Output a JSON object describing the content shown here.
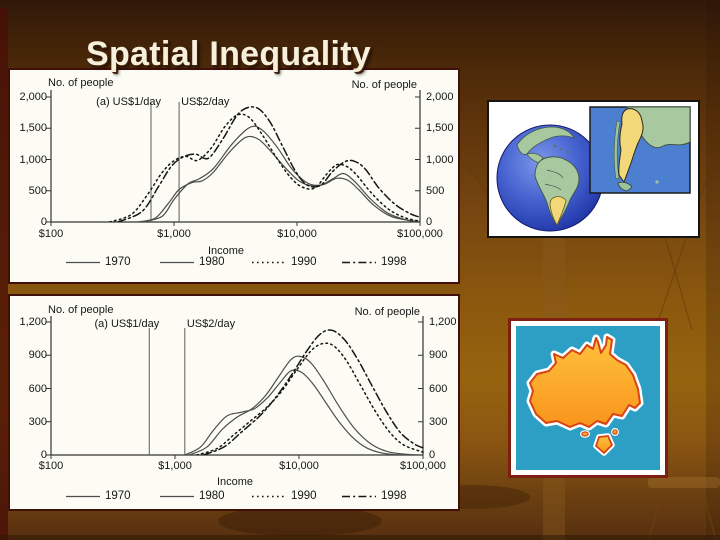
{
  "slide": {
    "title": "Spatial Inequality"
  },
  "chart_data": [
    {
      "type": "line",
      "x_scale": "log",
      "xlabel": "Income",
      "ylabel_left": "No. of people",
      "ylabel_right": "No. of people",
      "xlim": [
        100,
        100000
      ],
      "ylim": [
        0,
        2000
      ],
      "x_tick_labels": [
        "$100",
        "$1,000",
        "$10,000",
        "$100,000"
      ],
      "y_tick_labels": [
        "0",
        "500",
        "1,000",
        "1,500",
        "2,000"
      ],
      "grid": false,
      "legend_position": "bottom",
      "reference_lines": [
        {
          "label": "(a) US$1/day",
          "x": 650
        },
        {
          "label": "US$2/day",
          "x": 1100
        }
      ],
      "series": [
        {
          "name": "1970",
          "style": "solid",
          "points": [
            [
              500,
              0
            ],
            [
              700,
              60
            ],
            [
              900,
              300
            ],
            [
              1100,
              520
            ],
            [
              1400,
              630
            ],
            [
              1700,
              660
            ],
            [
              2100,
              800
            ],
            [
              2800,
              1110
            ],
            [
              3800,
              1350
            ],
            [
              4800,
              1330
            ],
            [
              6000,
              1150
            ],
            [
              8000,
              870
            ],
            [
              10500,
              650
            ],
            [
              13500,
              575
            ],
            [
              17000,
              610
            ],
            [
              21000,
              700
            ],
            [
              26000,
              665
            ],
            [
              32000,
              510
            ],
            [
              42000,
              270
            ],
            [
              60000,
              80
            ],
            [
              100000,
              5
            ]
          ]
        },
        {
          "name": "1980",
          "style": "solid",
          "points": [
            [
              550,
              0
            ],
            [
              800,
              90
            ],
            [
              1000,
              360
            ],
            [
              1300,
              610
            ],
            [
              1600,
              690
            ],
            [
              2100,
              860
            ],
            [
              3000,
              1260
            ],
            [
              4200,
              1520
            ],
            [
              5300,
              1460
            ],
            [
              7000,
              1180
            ],
            [
              9000,
              860
            ],
            [
              12000,
              630
            ],
            [
              15500,
              590
            ],
            [
              19500,
              690
            ],
            [
              24000,
              775
            ],
            [
              30000,
              630
            ],
            [
              40000,
              360
            ],
            [
              55000,
              140
            ],
            [
              80000,
              25
            ],
            [
              100000,
              5
            ]
          ]
        },
        {
          "name": "1990",
          "style": "dotted",
          "points": [
            [
              300,
              0
            ],
            [
              450,
              120
            ],
            [
              600,
              420
            ],
            [
              800,
              790
            ],
            [
              1000,
              980
            ],
            [
              1250,
              1050
            ],
            [
              1550,
              985
            ],
            [
              2000,
              1180
            ],
            [
              2600,
              1530
            ],
            [
              3300,
              1715
            ],
            [
              4100,
              1670
            ],
            [
              5200,
              1400
            ],
            [
              6800,
              1030
            ],
            [
              8800,
              720
            ],
            [
              11000,
              560
            ],
            [
              14000,
              545
            ],
            [
              17500,
              770
            ],
            [
              21000,
              915
            ],
            [
              25000,
              895
            ],
            [
              30000,
              770
            ],
            [
              40000,
              470
            ],
            [
              55000,
              210
            ],
            [
              75000,
              70
            ],
            [
              100000,
              15
            ]
          ]
        },
        {
          "name": "1998",
          "style": "dashdot",
          "points": [
            [
              350,
              0
            ],
            [
              550,
              170
            ],
            [
              750,
              570
            ],
            [
              950,
              890
            ],
            [
              1200,
              1045
            ],
            [
              1500,
              1085
            ],
            [
              1900,
              1020
            ],
            [
              2500,
              1330
            ],
            [
              3400,
              1750
            ],
            [
              4600,
              1835
            ],
            [
              5900,
              1630
            ],
            [
              7600,
              1220
            ],
            [
              9600,
              830
            ],
            [
              12000,
              595
            ],
            [
              15500,
              585
            ],
            [
              19500,
              810
            ],
            [
              24500,
              965
            ],
            [
              29500,
              970
            ],
            [
              36000,
              845
            ],
            [
              46000,
              550
            ],
            [
              62000,
              290
            ],
            [
              82000,
              140
            ],
            [
              100000,
              75
            ]
          ]
        }
      ]
    },
    {
      "type": "line",
      "x_scale": "log",
      "xlabel": "Income",
      "ylabel_left": "No. of people",
      "ylabel_right": "No. of people",
      "xlim": [
        100,
        100000
      ],
      "ylim": [
        0,
        1200
      ],
      "x_tick_labels": [
        "$100",
        "$1,000",
        "$10,000",
        "$100,000"
      ],
      "y_tick_labels": [
        "0",
        "300",
        "600",
        "900",
        "1,200"
      ],
      "grid": false,
      "legend_position": "bottom",
      "reference_lines": [
        {
          "label": "(a) US$1/day",
          "x": 620
        },
        {
          "label": "US$2/day",
          "x": 1200
        }
      ],
      "series": [
        {
          "name": "1970",
          "style": "solid",
          "points": [
            [
              1200,
              0
            ],
            [
              1600,
              70
            ],
            [
              2000,
              210
            ],
            [
              2600,
              350
            ],
            [
              3400,
              385
            ],
            [
              4400,
              420
            ],
            [
              5600,
              520
            ],
            [
              7000,
              650
            ],
            [
              8600,
              760
            ],
            [
              10500,
              745
            ],
            [
              13000,
              640
            ],
            [
              16500,
              470
            ],
            [
              21000,
              300
            ],
            [
              27000,
              160
            ],
            [
              35000,
              65
            ],
            [
              48000,
              15
            ],
            [
              70000,
              0
            ],
            [
              100000,
              0
            ]
          ]
        },
        {
          "name": "1980",
          "style": "solid",
          "points": [
            [
              1300,
              0
            ],
            [
              1800,
              70
            ],
            [
              2400,
              230
            ],
            [
              3200,
              345
            ],
            [
              4200,
              420
            ],
            [
              5400,
              540
            ],
            [
              6800,
              700
            ],
            [
              8600,
              860
            ],
            [
              10200,
              890
            ],
            [
              12500,
              830
            ],
            [
              16000,
              660
            ],
            [
              21000,
              440
            ],
            [
              28000,
              240
            ],
            [
              38000,
              100
            ],
            [
              52000,
              30
            ],
            [
              75000,
              5
            ],
            [
              100000,
              0
            ]
          ]
        },
        {
          "name": "1990",
          "style": "dotted",
          "points": [
            [
              1500,
              0
            ],
            [
              2200,
              60
            ],
            [
              3000,
              185
            ],
            [
              4100,
              310
            ],
            [
              5500,
              430
            ],
            [
              7300,
              580
            ],
            [
              9600,
              770
            ],
            [
              12500,
              940
            ],
            [
              15500,
              1005
            ],
            [
              19000,
              985
            ],
            [
              24000,
              855
            ],
            [
              31000,
              640
            ],
            [
              41000,
              400
            ],
            [
              54000,
              205
            ],
            [
              70000,
              90
            ],
            [
              100000,
              25
            ]
          ]
        },
        {
          "name": "1998",
          "style": "dashdot",
          "points": [
            [
              1700,
              0
            ],
            [
              2500,
              75
            ],
            [
              3500,
              215
            ],
            [
              4900,
              360
            ],
            [
              6600,
              530
            ],
            [
              8800,
              730
            ],
            [
              11500,
              935
            ],
            [
              14800,
              1090
            ],
            [
              18500,
              1125
            ],
            [
              23500,
              1035
            ],
            [
              30000,
              855
            ],
            [
              39000,
              620
            ],
            [
              51000,
              385
            ],
            [
              66000,
              200
            ],
            [
              85000,
              100
            ],
            [
              100000,
              65
            ]
          ]
        }
      ]
    }
  ],
  "maps": {
    "argentina_globe": {
      "name": "argentina-globe-map",
      "colors": {
        "ocean": "#3a5cc8",
        "land": "#a8c8a0",
        "highlight": "#f2d878",
        "inset_ocean": "#4d7fd0"
      }
    },
    "australia": {
      "name": "australia-map",
      "colors": {
        "sea": "#2e9fc4",
        "land_fill": "#ffa726",
        "land_outline": "#d84315",
        "halo": "#ffffff",
        "frame": "#7e1f14"
      }
    }
  }
}
